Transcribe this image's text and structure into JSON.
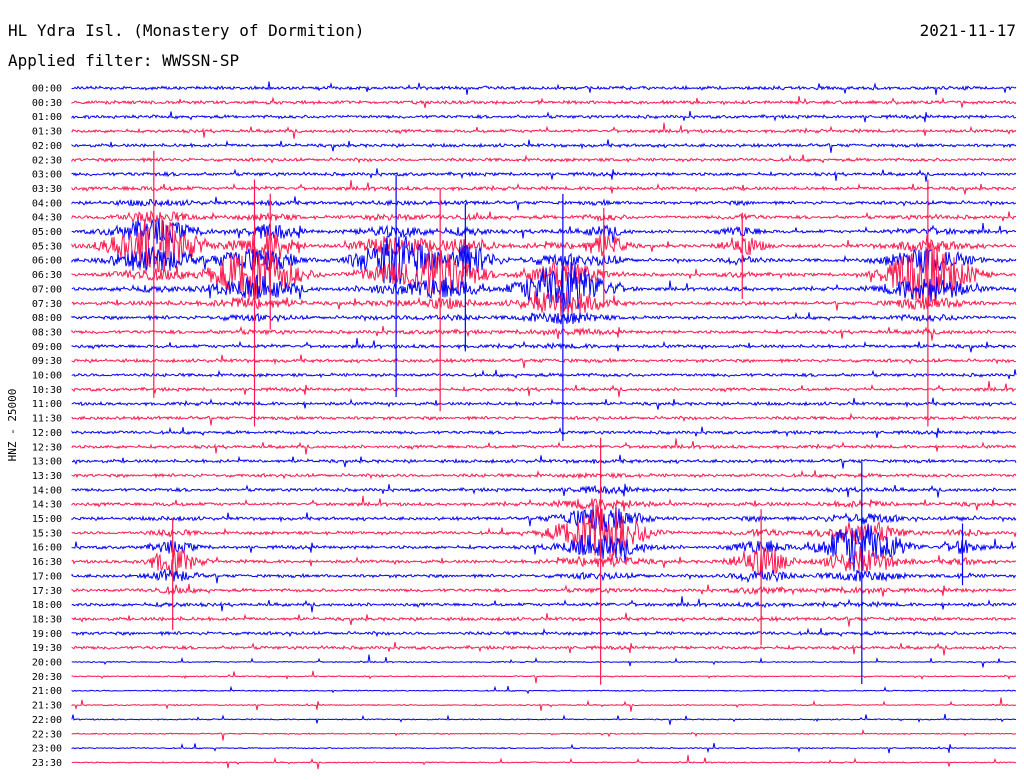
{
  "header": {
    "station": "HL Ydra Isl. (Monastery of Dormition)",
    "filter": "Applied filter: WWSSN-SP",
    "date": "2021-11-17"
  },
  "axis": {
    "ylabel": "HNZ - 25000"
  },
  "colors": {
    "trace_a": "#0000ff",
    "trace_b": "#ff1a4d",
    "background": "#ffffff",
    "text": "#000000"
  },
  "chart_data": {
    "type": "line",
    "title": "HL Ydra Isl. (Monastery of Dormition)",
    "subtitle": "Applied filter: WWSSN-SP",
    "ylabel": "HNZ - 25000",
    "row_labels": [
      "00:00",
      "00:30",
      "01:00",
      "01:30",
      "02:00",
      "02:30",
      "03:00",
      "03:30",
      "04:00",
      "04:30",
      "05:00",
      "05:30",
      "06:00",
      "06:30",
      "07:00",
      "07:30",
      "08:00",
      "08:30",
      "09:00",
      "09:30",
      "10:00",
      "10:30",
      "11:00",
      "11:30",
      "12:00",
      "12:30",
      "13:00",
      "13:30",
      "14:00",
      "14:30",
      "15:00",
      "15:30",
      "16:00",
      "16:30",
      "17:00",
      "17:30",
      "18:00",
      "18:30",
      "19:00",
      "19:30",
      "20:00",
      "20:30",
      "21:00",
      "21:30",
      "22:00",
      "22:30",
      "23:00",
      "23:30"
    ],
    "x_range_minutes": [
      0,
      30
    ],
    "events": [
      {
        "row": "05:30",
        "minute": 2.6,
        "peak": 1.0
      },
      {
        "row": "06:30",
        "minute": 5.8,
        "peak": 1.0
      },
      {
        "row": "05:30",
        "minute": 6.3,
        "peak": 0.55
      },
      {
        "row": "06:00",
        "minute": 10.3,
        "peak": 0.9
      },
      {
        "row": "06:30",
        "minute": 11.7,
        "peak": 0.9
      },
      {
        "row": "06:00",
        "minute": 12.5,
        "peak": 0.6
      },
      {
        "row": "07:00",
        "minute": 15.6,
        "peak": 1.0
      },
      {
        "row": "05:30",
        "minute": 16.9,
        "peak": 0.4
      },
      {
        "row": "05:30",
        "minute": 21.3,
        "peak": 0.35
      },
      {
        "row": "06:30",
        "minute": 27.2,
        "peak": 1.0
      },
      {
        "row": "15:30",
        "minute": 16.8,
        "peak": 1.0
      },
      {
        "row": "16:00",
        "minute": 25.1,
        "peak": 0.9
      },
      {
        "row": "16:30",
        "minute": 21.9,
        "peak": 0.55
      },
      {
        "row": "16:30",
        "minute": 3.2,
        "peak": 0.45
      },
      {
        "row": "16:00",
        "minute": 28.3,
        "peak": 0.25
      }
    ]
  }
}
